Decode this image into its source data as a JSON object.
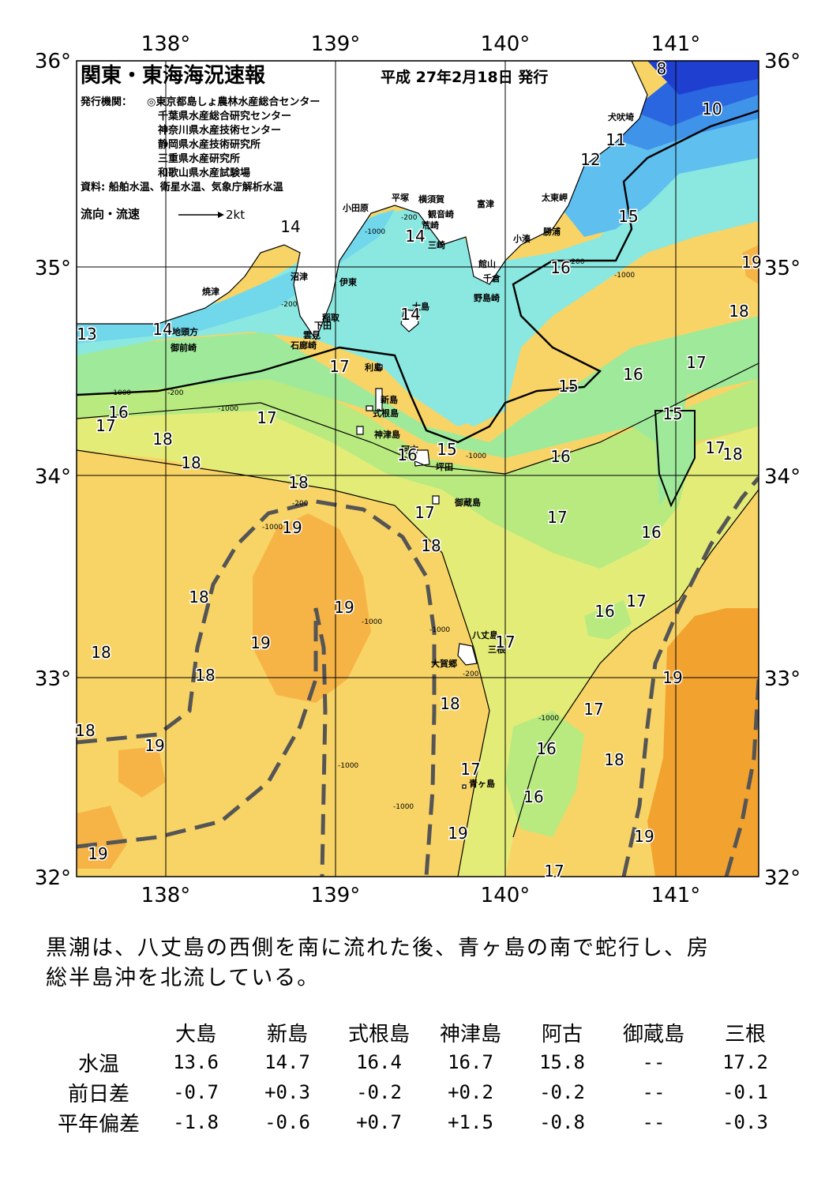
{
  "map": {
    "title": "関東・東海海況速報",
    "issue_date": "平成 27年2月18日 発行",
    "publisher_label": "発行機関：",
    "publishers": [
      "◎東京都島しょ農林水産総合センター",
      "千葉県水産総合研究センター",
      "神奈川県水産技術センター",
      "静岡県水産技術研究所",
      "三重県水産研究所",
      "和歌山県水産試験場"
    ],
    "sources": "資料: 船舶水温、衛星水温、気象庁解析水温",
    "legend_flow": "流向・流速",
    "legend_speed": "2kt",
    "lon_labels": [
      "138°",
      "139°",
      "140°",
      "141°"
    ],
    "lat_labels": [
      "36°",
      "35°",
      "34°",
      "33°",
      "32°"
    ],
    "place_names": {
      "inubozaki": "犬吠埼",
      "taitomisaki": "太東岬",
      "katsuura": "勝浦",
      "kominato": "小湊",
      "tateyama": "館山",
      "chikura": "千倉",
      "nojimazaki": "野島崎",
      "futtsu": "富津",
      "kannonzaki": "観音崎",
      "yokosuka": "横須賀",
      "hiratsuka": "平塚",
      "odawara": "小田原",
      "arasaki": "荒崎",
      "misaki": "三崎",
      "numazu": "沼津",
      "ito": "伊東",
      "inatori": "稲取",
      "shimoda": "下田",
      "kumomi": "雲見",
      "irozaki": "石廊崎",
      "yaizu": "焼津",
      "jitokata": "地頭方",
      "omaezaki": "御前崎",
      "oshima": "大島",
      "toshima": "利島",
      "niijima": "新島",
      "shikinejima": "式根島",
      "kozushima": "神津島",
      "miyakejima_ako": "阿古",
      "tsubota": "坪田",
      "mikurajima": "御蔵島",
      "hachijojima": "八丈島",
      "mitsune": "三根",
      "okago": "大賀郷",
      "aogashima": "青ヶ島"
    },
    "temperature_labels": [
      "8",
      "10",
      "11",
      "12",
      "13",
      "14",
      "14",
      "14",
      "14",
      "15",
      "15",
      "15",
      "15",
      "16",
      "16",
      "16",
      "16",
      "16",
      "16",
      "16",
      "16",
      "16",
      "17",
      "17",
      "17",
      "17",
      "17",
      "17",
      "17",
      "17",
      "17",
      "17",
      "17",
      "17",
      "18",
      "18",
      "18",
      "18",
      "18",
      "18",
      "18",
      "18",
      "18",
      "18",
      "18",
      "18",
      "19",
      "19",
      "19",
      "19",
      "19",
      "19",
      "19",
      "19"
    ],
    "depth_labels": [
      "-200",
      "-1000"
    ],
    "colors": {
      "t8": "#1f3fd0",
      "t10": "#2a66e0",
      "t11": "#3f93e8",
      "t12": "#5fbfee",
      "t13": "#71d8ec",
      "t14": "#8ae8e0",
      "t15": "#9eea9a",
      "t16": "#b8ea80",
      "t17": "#e4ec78",
      "t18": "#f8d466",
      "t19": "#f7b446",
      "t20": "#f2a22e",
      "land": "#ffffff",
      "kuroshio": "#555555"
    }
  },
  "summary": {
    "line1": "黒潮は、八丈島の西側を南に流れた後、青ヶ島の南で蛇行し、房",
    "line2": "総半島沖を北流している。"
  },
  "table": {
    "columns": [
      "大島",
      "新島",
      "式根島",
      "神津島",
      "阿古",
      "御蔵島",
      "三根"
    ],
    "rows": [
      {
        "label": "水温",
        "values": [
          "13.6",
          "14.7",
          "16.4",
          "16.7",
          "15.8",
          "--",
          "17.2"
        ]
      },
      {
        "label": "前日差",
        "values": [
          "-0.7",
          "+0.3",
          "-0.2",
          "+0.2",
          "-0.2",
          "--",
          "-0.1"
        ]
      },
      {
        "label": "平年偏差",
        "values": [
          "-1.8",
          "-0.6",
          "+0.7",
          "+1.5",
          "-0.8",
          "--",
          "-0.3"
        ]
      }
    ]
  }
}
